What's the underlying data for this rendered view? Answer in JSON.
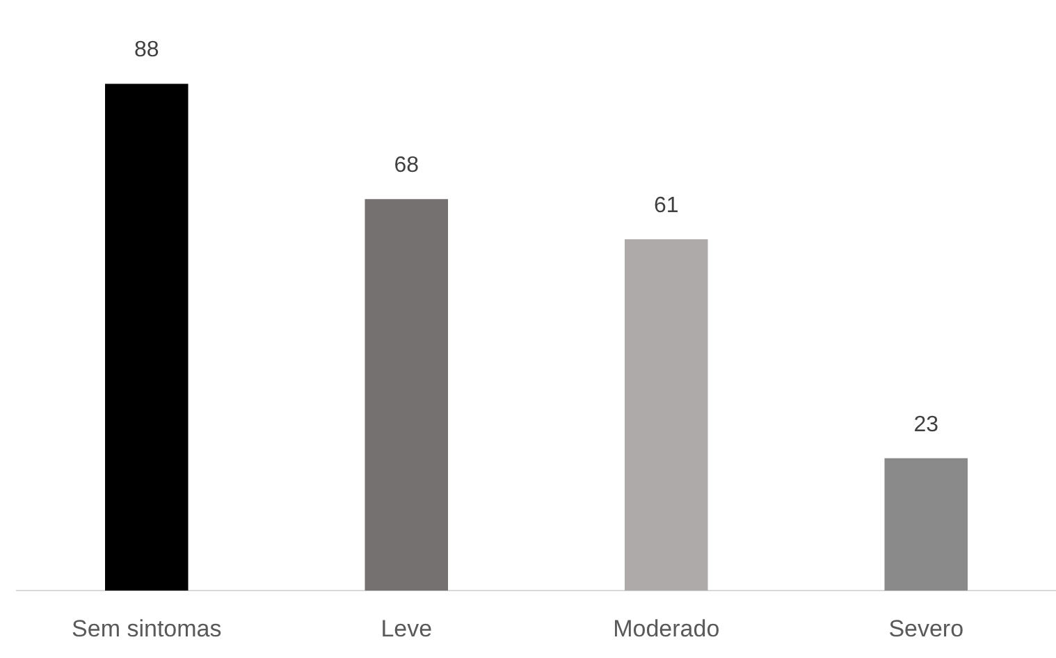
{
  "chart_data": {
    "type": "bar",
    "categories": [
      "Sem sintomas",
      "Leve",
      "Moderado",
      "Severo"
    ],
    "values": [
      88,
      68,
      61,
      23
    ],
    "colors": [
      "#000000",
      "#767171",
      "#aeaaaa",
      "#8a8a8a"
    ],
    "data_labels": true,
    "grid": false,
    "legend": false
  }
}
